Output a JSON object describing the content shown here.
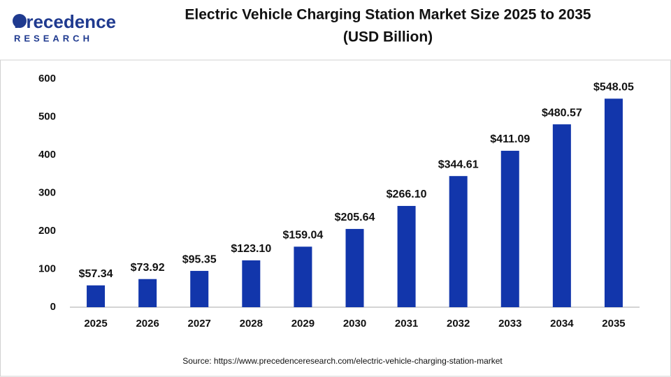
{
  "logo": {
    "name": "Precedence",
    "tagline": "RESEARCH"
  },
  "chart_data": {
    "type": "bar",
    "title": "Electric Vehicle Charging Station Market Size 2025 to 2035",
    "subtitle": "(USD Billion)",
    "categories": [
      "2025",
      "2026",
      "2027",
      "2028",
      "2029",
      "2030",
      "2031",
      "2032",
      "2033",
      "2034",
      "2035"
    ],
    "values": [
      57.34,
      73.92,
      95.35,
      123.1,
      159.04,
      205.64,
      266.1,
      344.61,
      411.09,
      480.57,
      548.05
    ],
    "value_labels": [
      "$57.34",
      "$73.92",
      "$95.35",
      "$123.10",
      "$159.04",
      "$205.64",
      "$266.10",
      "$344.61",
      "$411.09",
      "$480.57",
      "$548.05"
    ],
    "color": "#1236ab",
    "ylim": [
      0,
      600
    ],
    "yticks": [
      0,
      100,
      200,
      300,
      400,
      500,
      600
    ],
    "grid": false,
    "source": "Source: https://www.precedenceresearch.com/electric-vehicle-charging-station-market"
  }
}
